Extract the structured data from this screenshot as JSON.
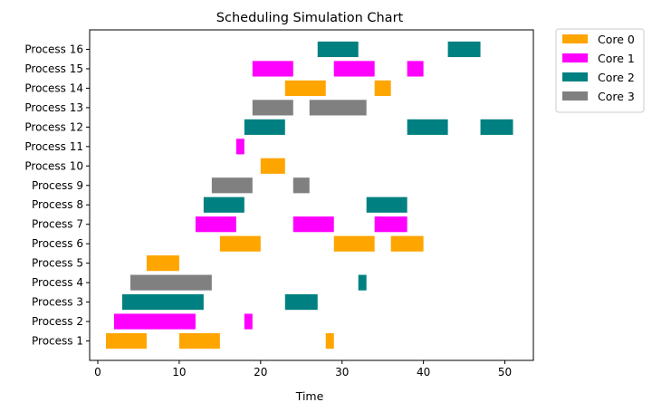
{
  "chart_data": {
    "type": "gantt",
    "title": "Scheduling Simulation Chart",
    "xlabel": "Time",
    "ylabel": "",
    "xlim": [
      -1,
      53.5
    ],
    "x_ticks": [
      0,
      10,
      20,
      30,
      40,
      50
    ],
    "x_tick_labels": [
      "0",
      "10",
      "20",
      "30",
      "40",
      "50"
    ],
    "grid": false,
    "legend_position": "outside-top-right",
    "categories": [
      "Process 1",
      "Process 2",
      "Process 3",
      "Process 4",
      "Process 5",
      "Process 6",
      "Process 7",
      "Process 8",
      "Process 9",
      "Process 10",
      "Process 11",
      "Process 12",
      "Process 13",
      "Process 14",
      "Process 15",
      "Process 16"
    ],
    "series": [
      {
        "name": "Core 0",
        "color": "#ffa500"
      },
      {
        "name": "Core 1",
        "color": "#ff00ff"
      },
      {
        "name": "Core 2",
        "color": "#008080"
      },
      {
        "name": "Core 3",
        "color": "#808080"
      }
    ],
    "tasks": [
      {
        "process": 0,
        "core": 0,
        "start": 1,
        "end": 6
      },
      {
        "process": 0,
        "core": 0,
        "start": 10,
        "end": 15
      },
      {
        "process": 0,
        "core": 0,
        "start": 28,
        "end": 29
      },
      {
        "process": 1,
        "core": 1,
        "start": 2,
        "end": 12
      },
      {
        "process": 1,
        "core": 1,
        "start": 18,
        "end": 19
      },
      {
        "process": 2,
        "core": 2,
        "start": 3,
        "end": 13
      },
      {
        "process": 2,
        "core": 2,
        "start": 23,
        "end": 27
      },
      {
        "process": 3,
        "core": 3,
        "start": 4,
        "end": 14
      },
      {
        "process": 3,
        "core": 2,
        "start": 32,
        "end": 33
      },
      {
        "process": 4,
        "core": 0,
        "start": 6,
        "end": 10
      },
      {
        "process": 5,
        "core": 0,
        "start": 15,
        "end": 20
      },
      {
        "process": 5,
        "core": 0,
        "start": 29,
        "end": 34
      },
      {
        "process": 5,
        "core": 0,
        "start": 36,
        "end": 40
      },
      {
        "process": 6,
        "core": 1,
        "start": 12,
        "end": 17
      },
      {
        "process": 6,
        "core": 1,
        "start": 24,
        "end": 29
      },
      {
        "process": 6,
        "core": 1,
        "start": 34,
        "end": 38
      },
      {
        "process": 7,
        "core": 2,
        "start": 13,
        "end": 18
      },
      {
        "process": 7,
        "core": 2,
        "start": 33,
        "end": 38
      },
      {
        "process": 8,
        "core": 3,
        "start": 14,
        "end": 19
      },
      {
        "process": 8,
        "core": 3,
        "start": 24,
        "end": 26
      },
      {
        "process": 9,
        "core": 0,
        "start": 20,
        "end": 23
      },
      {
        "process": 10,
        "core": 1,
        "start": 17,
        "end": 18
      },
      {
        "process": 11,
        "core": 2,
        "start": 18,
        "end": 23
      },
      {
        "process": 11,
        "core": 2,
        "start": 38,
        "end": 43
      },
      {
        "process": 11,
        "core": 2,
        "start": 47,
        "end": 51
      },
      {
        "process": 12,
        "core": 3,
        "start": 19,
        "end": 24
      },
      {
        "process": 12,
        "core": 3,
        "start": 26,
        "end": 33
      },
      {
        "process": 13,
        "core": 0,
        "start": 23,
        "end": 28
      },
      {
        "process": 13,
        "core": 0,
        "start": 34,
        "end": 36
      },
      {
        "process": 14,
        "core": 1,
        "start": 19,
        "end": 24
      },
      {
        "process": 14,
        "core": 1,
        "start": 29,
        "end": 34
      },
      {
        "process": 14,
        "core": 1,
        "start": 38,
        "end": 40
      },
      {
        "process": 15,
        "core": 2,
        "start": 27,
        "end": 32
      },
      {
        "process": 15,
        "core": 2,
        "start": 43,
        "end": 47
      }
    ]
  }
}
